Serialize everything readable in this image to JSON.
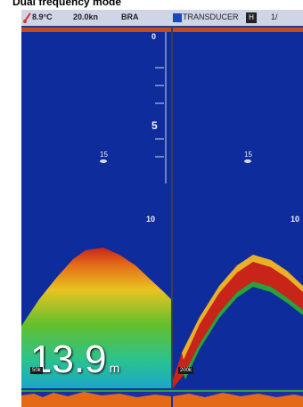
{
  "caption": "Dual frequency mode",
  "status_bar": {
    "temperature": "8.9°C",
    "speed": "20.0kn",
    "mode": "BRA",
    "transducer_label": "TRANSDUCER",
    "page_indicator": "1/"
  },
  "left_panel": {
    "depth_scale_zero": "0",
    "depth_scale_5": "5",
    "depth_scale_10": "10",
    "fish_1": "15",
    "depth_readout_value": "13.9",
    "depth_readout_unit": "m",
    "frequency_tag": "50k"
  },
  "right_panel": {
    "depth_scale_10": "10",
    "fish_1": "15",
    "frequency_tag": "200k"
  },
  "colors": {
    "water": "#0f2c9c",
    "status_bar": "#cfd4e6",
    "range_bar": "#c54a1e",
    "bottom_echo_red": "#c8241a",
    "bottom_echo_green": "#2aa23a"
  }
}
